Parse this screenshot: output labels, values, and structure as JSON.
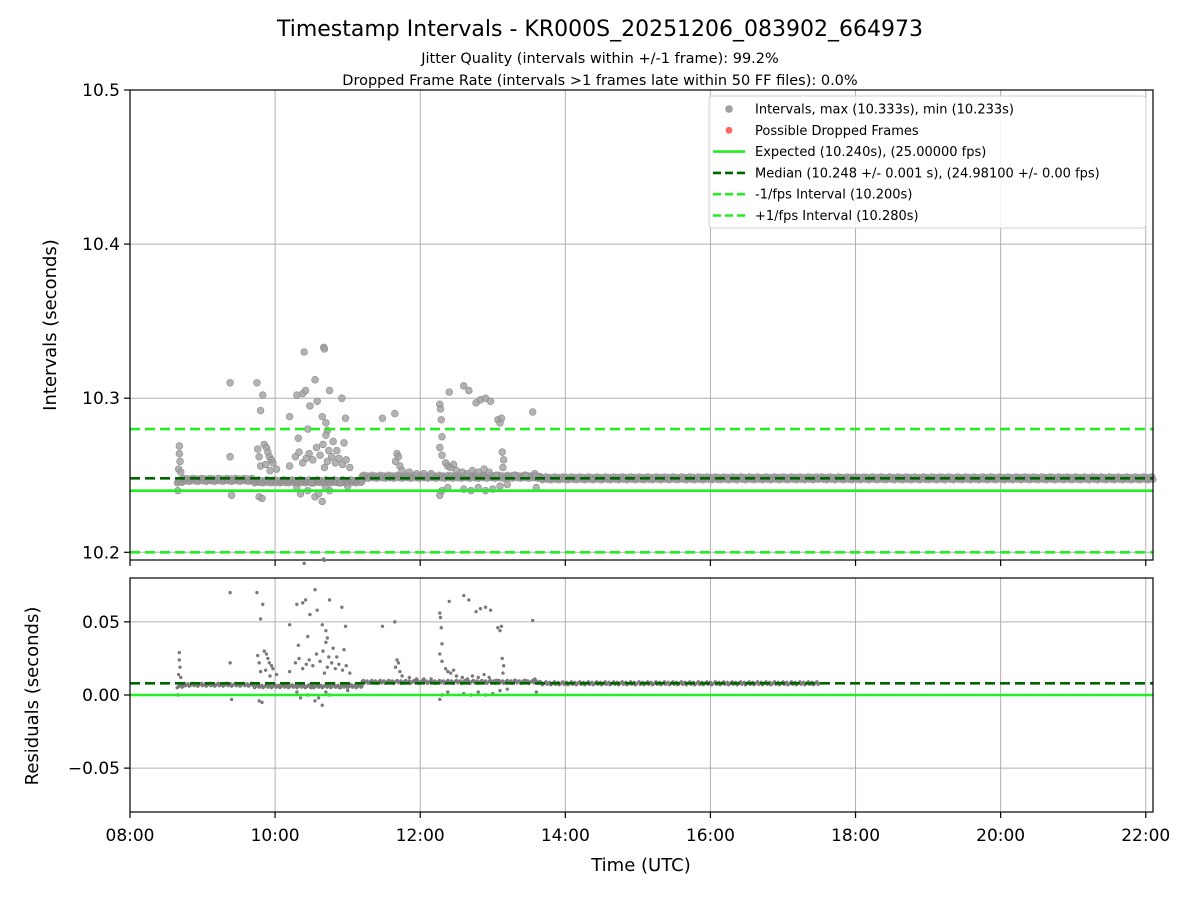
{
  "title": "Timestamp Intervals - KR000S_20251206_083902_664973",
  "subtitles": [
    "Jitter Quality (intervals within +/-1 frame): 99.2%",
    "Dropped Frame Rate (intervals >1 frames late within 50 FF files): 0.0%"
  ],
  "colors": {
    "expected": "#22ee22",
    "median": "#006400",
    "fps_band": "#22ee22",
    "interval_point": "#a0a0a0",
    "interval_point_edge": "#8a8a8a",
    "dropped": "#ff6666",
    "residual_point": "#7a7a7a",
    "grid": "#b0b0b0"
  },
  "chart_data": [
    {
      "type": "scatter",
      "name": "intervals",
      "xlabel": "Time (UTC)",
      "ylabel": "Intervals (seconds)",
      "xlim": [
        8.0,
        22.1
      ],
      "ylim": [
        10.195,
        10.5
      ],
      "xticks": [
        8,
        10,
        12,
        14,
        16,
        18,
        20,
        22
      ],
      "xtick_labels": [
        "08:00",
        "10:00",
        "12:00",
        "14:00",
        "16:00",
        "18:00",
        "20:00",
        "22:00"
      ],
      "yticks": [
        10.2,
        10.3,
        10.4,
        10.5
      ],
      "ytick_labels": [
        "10.2",
        "10.3",
        "10.4",
        "10.5"
      ],
      "hlines": {
        "expected": 10.24,
        "median": 10.248,
        "minus_fps": 10.2,
        "plus_fps": 10.28
      },
      "legend": [
        {
          "label": "Intervals, max (10.333s), min (10.233s)",
          "kind": "dot-gray"
        },
        {
          "label": "Possible Dropped Frames",
          "kind": "dot-red"
        },
        {
          "label": "Expected (10.240s), (25.00000 fps)",
          "kind": "line-solid"
        },
        {
          "label": "Median (10.248 +/- 0.001 s), (24.98100 +/- 0.00 fps)",
          "kind": "line-dash-dark"
        },
        {
          "label": "-1/fps Interval (10.200s)",
          "kind": "line-dash-light"
        },
        {
          "label": "+1/fps Interval (10.280s)",
          "kind": "line-dash-light"
        }
      ],
      "legend_position": "top-right",
      "baseline_segments": [
        {
          "x0": 8.65,
          "x1": 8.75,
          "y": 10.246
        },
        {
          "x0": 8.75,
          "x1": 9.7,
          "y": 10.247
        },
        {
          "x0": 9.7,
          "x1": 11.2,
          "y": 10.246
        },
        {
          "x0": 11.2,
          "x1": 13.65,
          "y": 10.249
        },
        {
          "x0": 13.65,
          "x1": 17.5,
          "y": 10.248
        },
        {
          "x0": 17.5,
          "x1": 22.1,
          "y": 10.248
        }
      ],
      "outliers": [
        [
          8.68,
          10.269
        ],
        [
          8.68,
          10.264
        ],
        [
          8.69,
          10.259
        ],
        [
          8.67,
          10.254
        ],
        [
          8.7,
          10.252
        ],
        [
          8.66,
          10.24
        ],
        [
          9.38,
          10.31
        ],
        [
          9.38,
          10.262
        ],
        [
          9.4,
          10.237
        ],
        [
          9.75,
          10.31
        ],
        [
          9.78,
          10.236
        ],
        [
          9.83,
          10.302
        ],
        [
          9.8,
          10.292
        ],
        [
          9.82,
          10.235
        ],
        [
          9.76,
          10.267
        ],
        [
          9.78,
          10.262
        ],
        [
          9.8,
          10.256
        ],
        [
          9.85,
          10.27
        ],
        [
          9.88,
          10.268
        ],
        [
          9.9,
          10.265
        ],
        [
          9.92,
          10.262
        ],
        [
          9.95,
          10.26
        ],
        [
          9.87,
          10.257
        ],
        [
          9.93,
          10.253
        ],
        [
          9.97,
          10.258
        ],
        [
          10.02,
          10.254
        ],
        [
          10.2,
          10.288
        ],
        [
          10.2,
          10.256
        ],
        [
          10.3,
          10.302
        ],
        [
          10.32,
          10.274
        ],
        [
          10.38,
          10.303
        ],
        [
          10.4,
          10.33
        ],
        [
          10.42,
          10.305
        ],
        [
          10.45,
          10.28
        ],
        [
          10.48,
          10.295
        ],
        [
          10.55,
          10.312
        ],
        [
          10.58,
          10.298
        ],
        [
          10.65,
          10.288
        ],
        [
          10.67,
          10.333
        ],
        [
          10.68,
          10.332
        ],
        [
          10.7,
          10.284
        ],
        [
          10.72,
          10.279
        ],
        [
          10.75,
          10.305
        ],
        [
          10.8,
          10.272
        ],
        [
          10.85,
          10.266
        ],
        [
          10.92,
          10.3
        ],
        [
          10.95,
          10.271
        ],
        [
          10.97,
          10.287
        ],
        [
          10.3,
          10.242
        ],
        [
          10.35,
          10.238
        ],
        [
          10.45,
          10.24
        ],
        [
          10.5,
          10.245
        ],
        [
          10.55,
          10.236
        ],
        [
          10.6,
          10.238
        ],
        [
          10.65,
          10.233
        ],
        [
          10.7,
          10.242
        ],
        [
          10.75,
          10.24
        ],
        [
          10.9,
          10.245
        ],
        [
          11.0,
          10.243
        ],
        [
          10.28,
          10.262
        ],
        [
          10.33,
          10.265
        ],
        [
          10.38,
          10.258
        ],
        [
          10.43,
          10.261
        ],
        [
          10.47,
          10.264
        ],
        [
          10.52,
          10.26
        ],
        [
          10.57,
          10.268
        ],
        [
          10.62,
          10.263
        ],
        [
          10.66,
          10.27
        ],
        [
          10.7,
          10.276
        ],
        [
          10.74,
          10.266
        ],
        [
          10.78,
          10.262
        ],
        [
          10.83,
          10.258
        ],
        [
          10.88,
          10.261
        ],
        [
          10.93,
          10.257
        ],
        [
          10.98,
          10.26
        ],
        [
          11.03,
          10.255
        ],
        [
          10.68,
          10.255
        ],
        [
          10.72,
          10.259
        ],
        [
          11.48,
          10.287
        ],
        [
          11.65,
          10.29
        ],
        [
          11.68,
          10.264
        ],
        [
          11.7,
          10.262
        ],
        [
          11.66,
          10.259
        ],
        [
          11.72,
          10.256
        ],
        [
          11.75,
          10.253
        ],
        [
          11.85,
          10.252
        ],
        [
          11.95,
          10.251
        ],
        [
          12.05,
          10.251
        ],
        [
          12.15,
          10.251
        ],
        [
          12.27,
          10.296
        ],
        [
          12.28,
          10.293
        ],
        [
          12.29,
          10.286
        ],
        [
          12.3,
          10.275
        ],
        [
          12.27,
          10.268
        ],
        [
          12.3,
          10.263
        ],
        [
          12.35,
          10.258
        ],
        [
          12.38,
          10.256
        ],
        [
          12.42,
          10.255
        ],
        [
          12.46,
          10.257
        ],
        [
          12.5,
          10.253
        ],
        [
          12.27,
          10.237
        ],
        [
          12.3,
          10.24
        ],
        [
          12.38,
          10.242
        ],
        [
          12.4,
          10.304
        ],
        [
          12.6,
          10.308
        ],
        [
          12.67,
          10.305
        ],
        [
          12.77,
          10.297
        ],
        [
          12.83,
          10.299
        ],
        [
          12.9,
          10.3
        ],
        [
          12.97,
          10.298
        ],
        [
          13.07,
          10.286
        ],
        [
          13.1,
          10.284
        ],
        [
          13.12,
          10.287
        ],
        [
          12.58,
          10.252
        ],
        [
          12.65,
          10.251
        ],
        [
          12.72,
          10.253
        ],
        [
          12.8,
          10.252
        ],
        [
          12.88,
          10.254
        ],
        [
          12.95,
          10.252
        ],
        [
          13.05,
          10.25
        ],
        [
          13.13,
          10.265
        ],
        [
          13.15,
          10.26
        ],
        [
          13.14,
          10.255
        ],
        [
          12.6,
          10.241
        ],
        [
          12.7,
          10.24
        ],
        [
          12.8,
          10.242
        ],
        [
          12.9,
          10.24
        ],
        [
          13.0,
          10.241
        ],
        [
          13.1,
          10.243
        ],
        [
          13.2,
          10.244
        ],
        [
          13.55,
          10.291
        ],
        [
          13.58,
          10.251
        ],
        [
          13.6,
          10.249
        ],
        [
          13.6,
          10.242
        ],
        [
          13.45,
          10.25
        ],
        [
          13.3,
          10.25
        ]
      ]
    },
    {
      "type": "scatter",
      "name": "residuals",
      "xlabel": "Time (UTC)",
      "ylabel": "Residuals (seconds)",
      "xlim": [
        8.0,
        22.1
      ],
      "ylim": [
        -0.08,
        0.08
      ],
      "xticks": [
        8,
        10,
        12,
        14,
        16,
        18,
        20,
        22
      ],
      "xtick_labels": [
        "08:00",
        "10:00",
        "12:00",
        "14:00",
        "16:00",
        "18:00",
        "20:00",
        "22:00"
      ],
      "yticks": [
        -0.05,
        0.0,
        0.05
      ],
      "ytick_labels": [
        "−0.05",
        "0.00",
        "0.05"
      ],
      "hlines": {
        "expected": 0.0,
        "median": 0.008
      }
    }
  ]
}
